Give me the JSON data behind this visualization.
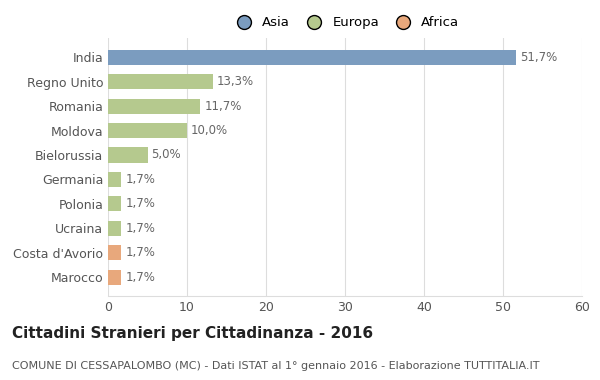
{
  "categories": [
    "Marocco",
    "Costa d'Avorio",
    "Ucraina",
    "Polonia",
    "Germania",
    "Bielorussia",
    "Moldova",
    "Romania",
    "Regno Unito",
    "India"
  ],
  "values": [
    1.7,
    1.7,
    1.7,
    1.7,
    1.7,
    5.0,
    10.0,
    11.7,
    13.3,
    51.7
  ],
  "labels": [
    "1,7%",
    "1,7%",
    "1,7%",
    "1,7%",
    "1,7%",
    "5,0%",
    "10,0%",
    "11,7%",
    "13,3%",
    "51,7%"
  ],
  "colors": [
    "#e8a87c",
    "#e8a87c",
    "#b5c98e",
    "#b5c98e",
    "#b5c98e",
    "#b5c98e",
    "#b5c98e",
    "#b5c98e",
    "#b5c98e",
    "#7b9cbf"
  ],
  "legend_labels": [
    "Asia",
    "Europa",
    "Africa"
  ],
  "legend_colors": [
    "#7b9cbf",
    "#b5c98e",
    "#e8a87c"
  ],
  "title": "Cittadini Stranieri per Cittadinanza - 2016",
  "subtitle": "COMUNE DI CESSAPALOMBO (MC) - Dati ISTAT al 1° gennaio 2016 - Elaborazione TUTTITALIA.IT",
  "xlim": [
    0,
    60
  ],
  "xticks": [
    0,
    10,
    20,
    30,
    40,
    50,
    60
  ],
  "background_color": "#ffffff",
  "grid_color": "#dddddd",
  "bar_height": 0.62,
  "title_fontsize": 11,
  "subtitle_fontsize": 8,
  "label_fontsize": 8.5,
  "tick_fontsize": 9
}
